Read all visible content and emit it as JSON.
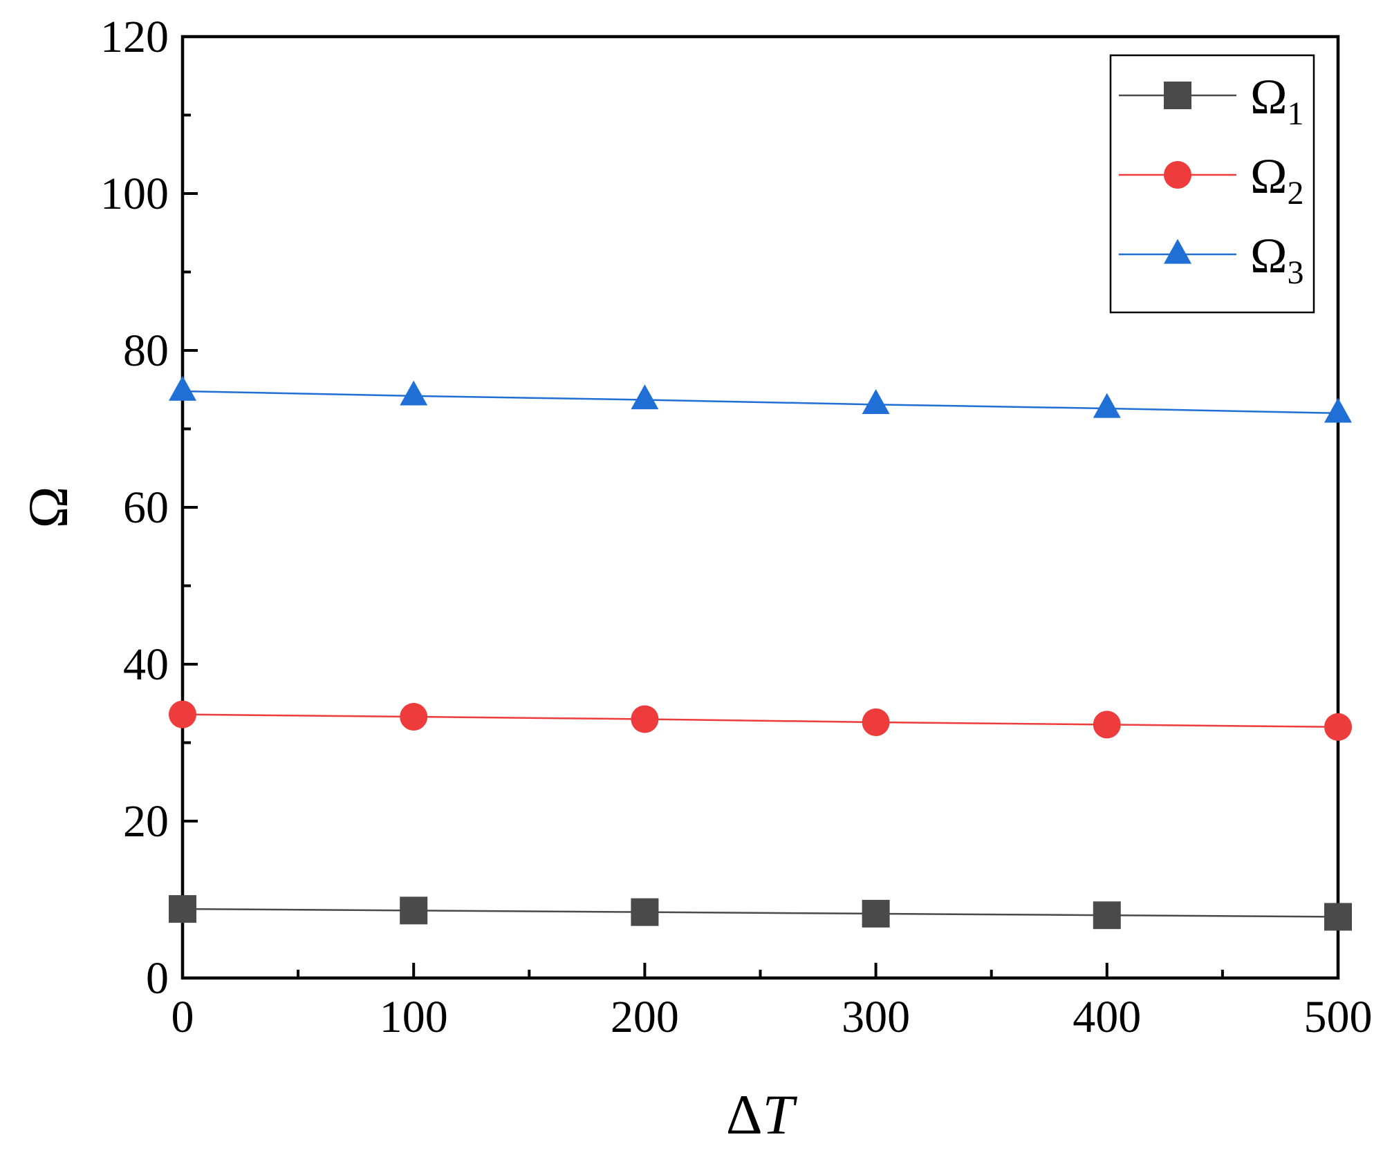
{
  "chart_data": {
    "type": "line",
    "title": "",
    "xlabel": {
      "symbol": "Δ",
      "var": "T"
    },
    "ylabel": "Ω",
    "xlim": [
      0,
      500
    ],
    "ylim": [
      0,
      120
    ],
    "x_ticks": [
      "0",
      "100",
      "200",
      "300",
      "400",
      "500"
    ],
    "y_ticks": [
      "0",
      "20",
      "40",
      "60",
      "80",
      "100",
      "120"
    ],
    "x": [
      0,
      100,
      200,
      300,
      400,
      500
    ],
    "grid": false,
    "legend_position": "top-right",
    "series": [
      {
        "name": "Ω",
        "sub": "1",
        "color": "#4a4a4a",
        "marker": "square",
        "values": [
          8.8,
          8.6,
          8.4,
          8.2,
          8.0,
          7.8
        ]
      },
      {
        "name": "Ω",
        "sub": "2",
        "color": "#ee3b3b",
        "marker": "circle",
        "values": [
          33.6,
          33.3,
          33.0,
          32.6,
          32.3,
          32.0
        ]
      },
      {
        "name": "Ω",
        "sub": "3",
        "color": "#1f6fd6",
        "marker": "triangle",
        "values": [
          74.8,
          74.2,
          73.7,
          73.1,
          72.6,
          72.0
        ]
      }
    ]
  }
}
